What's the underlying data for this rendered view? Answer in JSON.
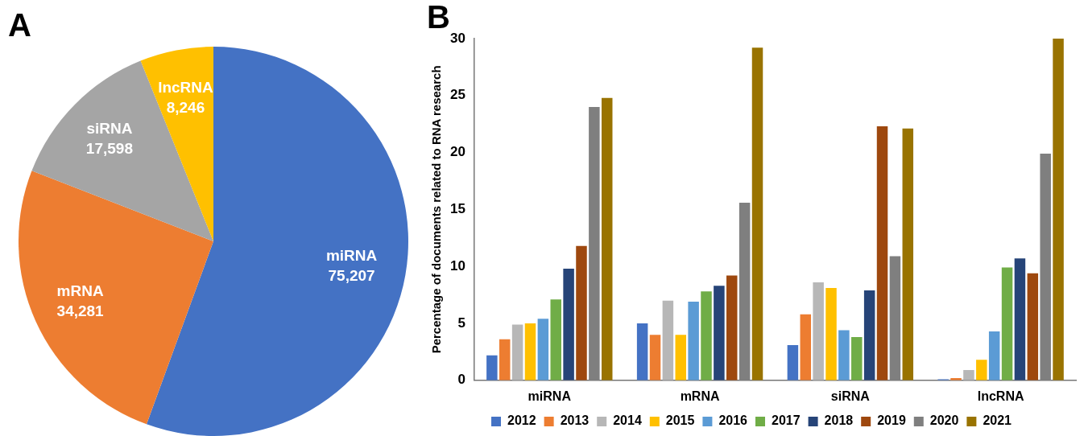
{
  "chart_data": [
    {
      "type": "pie",
      "title": "A",
      "categories": [
        "miRNA",
        "mRNA",
        "siRNA",
        "lncRNA"
      ],
      "values": [
        75207,
        34281,
        17598,
        8246
      ],
      "colors": [
        "#4472c4",
        "#ed7d31",
        "#a5a5a5",
        "#ffc000"
      ],
      "value_labels": [
        "75,207",
        "34,281",
        "17,598",
        "8,246"
      ],
      "legend": false
    },
    {
      "type": "bar",
      "title": "B",
      "ylabel": "Percentage of documents related to RNA research",
      "categories": [
        "miRNA",
        "mRNA",
        "siRNA",
        "lncRNA"
      ],
      "ylim": [
        0,
        30
      ],
      "yticks": [
        0,
        5,
        10,
        15,
        20,
        25,
        30
      ],
      "grid": false,
      "legend": "bottom",
      "series": [
        {
          "name": "2012",
          "color": "#4472c4",
          "values": [
            2.2,
            5.0,
            3.1,
            0.1
          ]
        },
        {
          "name": "2013",
          "color": "#ed7d31",
          "values": [
            3.6,
            4.0,
            5.8,
            0.2
          ]
        },
        {
          "name": "2014",
          "color": "#b7b7b7",
          "values": [
            4.9,
            7.0,
            8.6,
            0.9
          ]
        },
        {
          "name": "2015",
          "color": "#ffc000",
          "values": [
            5.0,
            4.0,
            8.1,
            1.8
          ]
        },
        {
          "name": "2016",
          "color": "#5b9bd5",
          "values": [
            5.4,
            6.9,
            4.4,
            4.3
          ]
        },
        {
          "name": "2017",
          "color": "#70ad47",
          "values": [
            7.1,
            7.8,
            3.8,
            9.9
          ]
        },
        {
          "name": "2018",
          "color": "#264478",
          "values": [
            9.8,
            8.3,
            7.9,
            10.7
          ]
        },
        {
          "name": "2019",
          "color": "#9e480e",
          "values": [
            11.8,
            9.2,
            22.3,
            9.4
          ]
        },
        {
          "name": "2020",
          "color": "#7f7f7f",
          "values": [
            24.0,
            15.6,
            10.9,
            19.9
          ]
        },
        {
          "name": "2021",
          "color": "#997300",
          "values": [
            24.8,
            29.2,
            22.1,
            30.0
          ]
        }
      ]
    }
  ]
}
